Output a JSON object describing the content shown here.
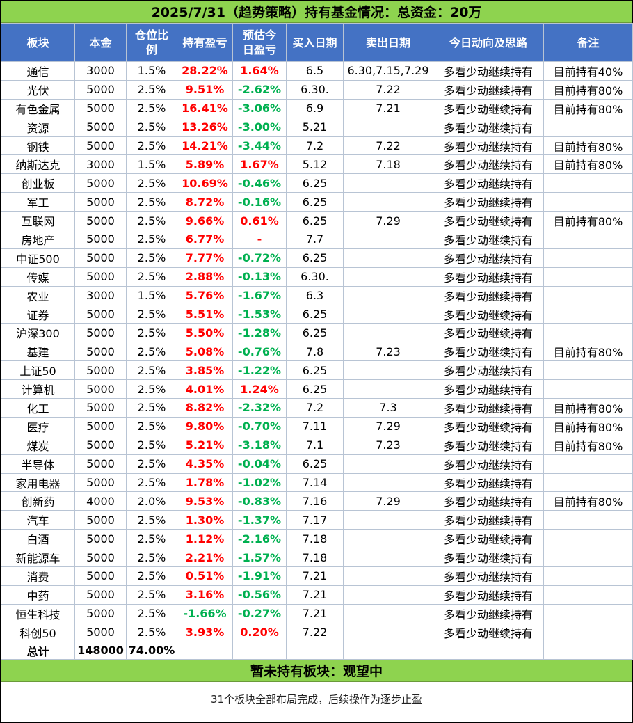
{
  "title": "2025/7/31（趋势策略）持有基金情况：总资金：20万",
  "headers": [
    "板块",
    "本金",
    "仓位比例",
    "持有盈亏",
    "预估今日盈亏",
    "买入日期",
    "卖出日期",
    "今日动向及思路",
    "备注"
  ],
  "header_lines": {
    "position": [
      "仓位比",
      "例"
    ],
    "estimate": [
      "预估今",
      "日盈亏"
    ]
  },
  "rows": [
    {
      "sector": "通信",
      "principal": "3000",
      "ratio": "1.5%",
      "holding_pl": "28.22%",
      "today_pl": "1.64%",
      "buy_date": "6.5",
      "sell_date": "6.30,7.15,7.29",
      "action": "多看少动继续持有",
      "note": "目前持有40%"
    },
    {
      "sector": "光伏",
      "principal": "5000",
      "ratio": "2.5%",
      "holding_pl": "9.51%",
      "today_pl": "-2.62%",
      "buy_date": "6.30.",
      "sell_date": "7.22",
      "action": "多看少动继续持有",
      "note": "目前持有80%"
    },
    {
      "sector": "有色金属",
      "principal": "5000",
      "ratio": "2.5%",
      "holding_pl": "16.41%",
      "today_pl": "-3.06%",
      "buy_date": "6.9",
      "sell_date": "7.21",
      "action": "多看少动继续持有",
      "note": "目前持有80%"
    },
    {
      "sector": "资源",
      "principal": "5000",
      "ratio": "2.5%",
      "holding_pl": "13.26%",
      "today_pl": "-3.00%",
      "buy_date": "5.21",
      "sell_date": "",
      "action": "多看少动继续持有",
      "note": ""
    },
    {
      "sector": "钢铁",
      "principal": "5000",
      "ratio": "2.5%",
      "holding_pl": "14.21%",
      "today_pl": "-3.44%",
      "buy_date": "7.2",
      "sell_date": "7.22",
      "action": "多看少动继续持有",
      "note": "目前持有80%"
    },
    {
      "sector": "纳斯达克",
      "principal": "3000",
      "ratio": "1.5%",
      "holding_pl": "5.89%",
      "today_pl": "1.67%",
      "buy_date": "5.12",
      "sell_date": "7.18",
      "action": "多看少动继续持有",
      "note": "目前持有80%"
    },
    {
      "sector": "创业板",
      "principal": "5000",
      "ratio": "2.5%",
      "holding_pl": "10.69%",
      "today_pl": "-0.46%",
      "buy_date": "6.25",
      "sell_date": "",
      "action": "多看少动继续持有",
      "note": ""
    },
    {
      "sector": "军工",
      "principal": "5000",
      "ratio": "2.5%",
      "holding_pl": "8.72%",
      "today_pl": "-0.16%",
      "buy_date": "6.25",
      "sell_date": "",
      "action": "多看少动继续持有",
      "note": ""
    },
    {
      "sector": "互联网",
      "principal": "5000",
      "ratio": "2.5%",
      "holding_pl": "9.66%",
      "today_pl": "0.61%",
      "buy_date": "6.25",
      "sell_date": "7.29",
      "action": "多看少动继续持有",
      "note": "目前持有80%"
    },
    {
      "sector": "房地产",
      "principal": "5000",
      "ratio": "2.5%",
      "holding_pl": "6.77%",
      "today_pl": "-",
      "buy_date": "7.7",
      "sell_date": "",
      "action": "多看少动继续持有",
      "note": ""
    },
    {
      "sector": "中证500",
      "principal": "5000",
      "ratio": "2.5%",
      "holding_pl": "7.77%",
      "today_pl": "-0.72%",
      "buy_date": "6.25",
      "sell_date": "",
      "action": "多看少动继续持有",
      "note": ""
    },
    {
      "sector": "传媒",
      "principal": "5000",
      "ratio": "2.5%",
      "holding_pl": "2.88%",
      "today_pl": "-0.13%",
      "buy_date": "6.30.",
      "sell_date": "",
      "action": "多看少动继续持有",
      "note": ""
    },
    {
      "sector": "农业",
      "principal": "3000",
      "ratio": "1.5%",
      "holding_pl": "5.76%",
      "today_pl": "-1.67%",
      "buy_date": "6.3",
      "sell_date": "",
      "action": "多看少动继续持有",
      "note": ""
    },
    {
      "sector": "证券",
      "principal": "5000",
      "ratio": "2.5%",
      "holding_pl": "5.51%",
      "today_pl": "-1.53%",
      "buy_date": "6.25",
      "sell_date": "",
      "action": "多看少动继续持有",
      "note": ""
    },
    {
      "sector": "沪深300",
      "principal": "5000",
      "ratio": "2.5%",
      "holding_pl": "5.50%",
      "today_pl": "-1.28%",
      "buy_date": "6.25",
      "sell_date": "",
      "action": "多看少动继续持有",
      "note": ""
    },
    {
      "sector": "基建",
      "principal": "5000",
      "ratio": "2.5%",
      "holding_pl": "5.08%",
      "today_pl": "-0.76%",
      "buy_date": "7.8",
      "sell_date": "7.23",
      "action": "多看少动继续持有",
      "note": "目前持有80%"
    },
    {
      "sector": "上证50",
      "principal": "5000",
      "ratio": "2.5%",
      "holding_pl": "3.85%",
      "today_pl": "-1.22%",
      "buy_date": "6.25",
      "sell_date": "",
      "action": "多看少动继续持有",
      "note": ""
    },
    {
      "sector": "计算机",
      "principal": "5000",
      "ratio": "2.5%",
      "holding_pl": "4.01%",
      "today_pl": "1.24%",
      "buy_date": "6.25",
      "sell_date": "",
      "action": "多看少动继续持有",
      "note": ""
    },
    {
      "sector": "化工",
      "principal": "5000",
      "ratio": "2.5%",
      "holding_pl": "8.82%",
      "today_pl": "-2.32%",
      "buy_date": "7.2",
      "sell_date": "7.3",
      "action": "多看少动继续持有",
      "note": "目前持有80%"
    },
    {
      "sector": "医疗",
      "principal": "5000",
      "ratio": "2.5%",
      "holding_pl": "9.80%",
      "today_pl": "-0.70%",
      "buy_date": "7.11",
      "sell_date": "7.29",
      "action": "多看少动继续持有",
      "note": "目前持有80%"
    },
    {
      "sector": "煤炭",
      "principal": "5000",
      "ratio": "2.5%",
      "holding_pl": "5.21%",
      "today_pl": "-3.18%",
      "buy_date": "7.1",
      "sell_date": "7.23",
      "action": "多看少动继续持有",
      "note": "目前持有80%"
    },
    {
      "sector": "半导体",
      "principal": "5000",
      "ratio": "2.5%",
      "holding_pl": "4.35%",
      "today_pl": "-0.04%",
      "buy_date": "6.25",
      "sell_date": "",
      "action": "多看少动继续持有",
      "note": ""
    },
    {
      "sector": "家用电器",
      "principal": "5000",
      "ratio": "2.5%",
      "holding_pl": "1.78%",
      "today_pl": "-1.02%",
      "buy_date": "7.14",
      "sell_date": "",
      "action": "多看少动继续持有",
      "note": ""
    },
    {
      "sector": "创新药",
      "principal": "4000",
      "ratio": "2.0%",
      "holding_pl": "9.53%",
      "today_pl": "-0.83%",
      "buy_date": "7.16",
      "sell_date": "7.29",
      "action": "多看少动继续持有",
      "note": "目前持有80%"
    },
    {
      "sector": "汽车",
      "principal": "5000",
      "ratio": "2.5%",
      "holding_pl": "1.30%",
      "today_pl": "-1.37%",
      "buy_date": "7.17",
      "sell_date": "",
      "action": "多看少动继续持有",
      "note": ""
    },
    {
      "sector": "白酒",
      "principal": "5000",
      "ratio": "2.5%",
      "holding_pl": "1.12%",
      "today_pl": "-2.16%",
      "buy_date": "7.18",
      "sell_date": "",
      "action": "多看少动继续持有",
      "note": ""
    },
    {
      "sector": "新能源车",
      "principal": "5000",
      "ratio": "2.5%",
      "holding_pl": "2.21%",
      "today_pl": "-1.57%",
      "buy_date": "7.18",
      "sell_date": "",
      "action": "多看少动继续持有",
      "note": ""
    },
    {
      "sector": "消费",
      "principal": "5000",
      "ratio": "2.5%",
      "holding_pl": "0.51%",
      "today_pl": "-1.91%",
      "buy_date": "7.21",
      "sell_date": "",
      "action": "多看少动继续持有",
      "note": ""
    },
    {
      "sector": "中药",
      "principal": "5000",
      "ratio": "2.5%",
      "holding_pl": "3.16%",
      "today_pl": "-0.56%",
      "buy_date": "7.21",
      "sell_date": "",
      "action": "多看少动继续持有",
      "note": ""
    },
    {
      "sector": "恒生科技",
      "principal": "5000",
      "ratio": "2.5%",
      "holding_pl": "-1.66%",
      "today_pl": "-0.27%",
      "buy_date": "7.21",
      "sell_date": "",
      "action": "多看少动继续持有",
      "note": ""
    },
    {
      "sector": "科创50",
      "principal": "5000",
      "ratio": "2.5%",
      "holding_pl": "3.93%",
      "today_pl": "0.20%",
      "buy_date": "7.22",
      "sell_date": "",
      "action": "多看少动继续持有",
      "note": ""
    }
  ],
  "total": {
    "label": "总计",
    "principal": "148000",
    "ratio": "74.00%"
  },
  "unheld_banner": "暂未持有板块：观望中",
  "footer_note": "31个板块全部布局完成，后续操作为逐步止盈",
  "colors": {
    "banner_green": "#8ed34f",
    "header_blue": "#4472c4",
    "positive": "#ff0000",
    "negative": "#00b050"
  }
}
